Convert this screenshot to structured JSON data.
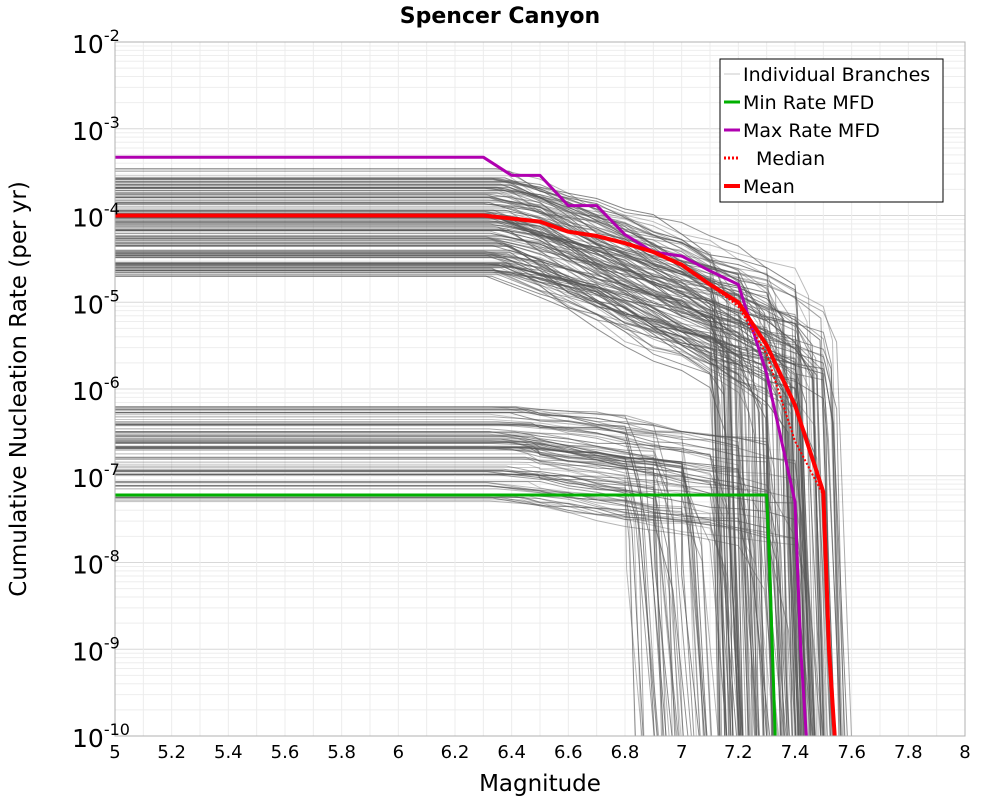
{
  "chart_data": {
    "type": "line",
    "title": "Spencer Canyon",
    "xlabel": "Magnitude",
    "ylabel": "Cumulative Nucleation Rate (per yr)",
    "xlim": [
      5,
      8
    ],
    "ylim": [
      1e-10,
      0.01
    ],
    "y_scale": "log",
    "grid": true,
    "x_ticks": [
      "5",
      "5.2",
      "5.4",
      "5.6",
      "5.8",
      "6",
      "6.2",
      "6.4",
      "6.6",
      "6.8",
      "7",
      "7.2",
      "7.4",
      "7.6",
      "7.8",
      "8"
    ],
    "y_ticks": [
      {
        "base": "10",
        "exp": "-10"
      },
      {
        "base": "10",
        "exp": "-9"
      },
      {
        "base": "10",
        "exp": "-8"
      },
      {
        "base": "10",
        "exp": "-7"
      },
      {
        "base": "10",
        "exp": "-6"
      },
      {
        "base": "10",
        "exp": "-5"
      },
      {
        "base": "10",
        "exp": "-4"
      },
      {
        "base": "10",
        "exp": "-3"
      },
      {
        "base": "10",
        "exp": "-2"
      }
    ],
    "legend": {
      "placement": "top-right",
      "entries": [
        {
          "label": "Individual Branches",
          "color": "#c8c8c8",
          "style": "thin"
        },
        {
          "label": "Min Rate MFD",
          "color": "#00b000",
          "style": "solid"
        },
        {
          "label": "Max Rate MFD",
          "color": "#b000b0",
          "style": "solid"
        },
        {
          "label": "Median",
          "color": "#ff0000",
          "style": "dotted"
        },
        {
          "label": "Mean",
          "color": "#ff0000",
          "style": "thick"
        }
      ]
    },
    "series": [
      {
        "name": "Min Rate MFD",
        "color": "#00b000",
        "x": [
          5.0,
          6.3,
          6.8,
          7.0,
          7.2,
          7.3,
          7.31,
          7.33
        ],
        "y": [
          6e-08,
          6e-08,
          6e-08,
          6e-08,
          6e-08,
          6e-08,
          1e-08,
          1e-10
        ]
      },
      {
        "name": "Max Rate MFD",
        "color": "#b000b0",
        "x": [
          5.0,
          6.3,
          6.4,
          6.5,
          6.6,
          6.7,
          6.8,
          6.9,
          7.0,
          7.1,
          7.2,
          7.3,
          7.4,
          7.42,
          7.44
        ],
        "y": [
          0.00047,
          0.00047,
          0.00029,
          0.00029,
          0.00013,
          0.00013,
          6e-05,
          3.8e-05,
          3.4e-05,
          2.3e-05,
          1.6e-05,
          1.5e-06,
          5e-08,
          1e-09,
          1e-10
        ]
      },
      {
        "name": "Median",
        "color": "#ff0000",
        "x": [
          5.0,
          6.3,
          6.5,
          6.6,
          6.7,
          6.8,
          6.9,
          7.0,
          7.1,
          7.2,
          7.3,
          7.4,
          7.5,
          7.52,
          7.54
        ],
        "y": [
          0.0001,
          0.0001,
          8.5e-05,
          6.5e-05,
          5.8e-05,
          4.8e-05,
          3.8e-05,
          2.7e-05,
          1.6e-05,
          9e-06,
          2.5e-06,
          2.5e-07,
          6e-08,
          1e-09,
          1e-10
        ]
      },
      {
        "name": "Mean",
        "color": "#ff0000",
        "x": [
          5.0,
          6.3,
          6.5,
          6.6,
          6.7,
          6.8,
          6.9,
          7.0,
          7.1,
          7.2,
          7.3,
          7.4,
          7.5,
          7.52,
          7.54
        ],
        "y": [
          0.0001,
          0.0001,
          8.5e-05,
          6.5e-05,
          5.8e-05,
          4.8e-05,
          3.8e-05,
          2.7e-05,
          1.6e-05,
          1e-05,
          3.2e-06,
          6.5e-07,
          6.5e-08,
          1e-09,
          1e-10
        ]
      }
    ]
  }
}
